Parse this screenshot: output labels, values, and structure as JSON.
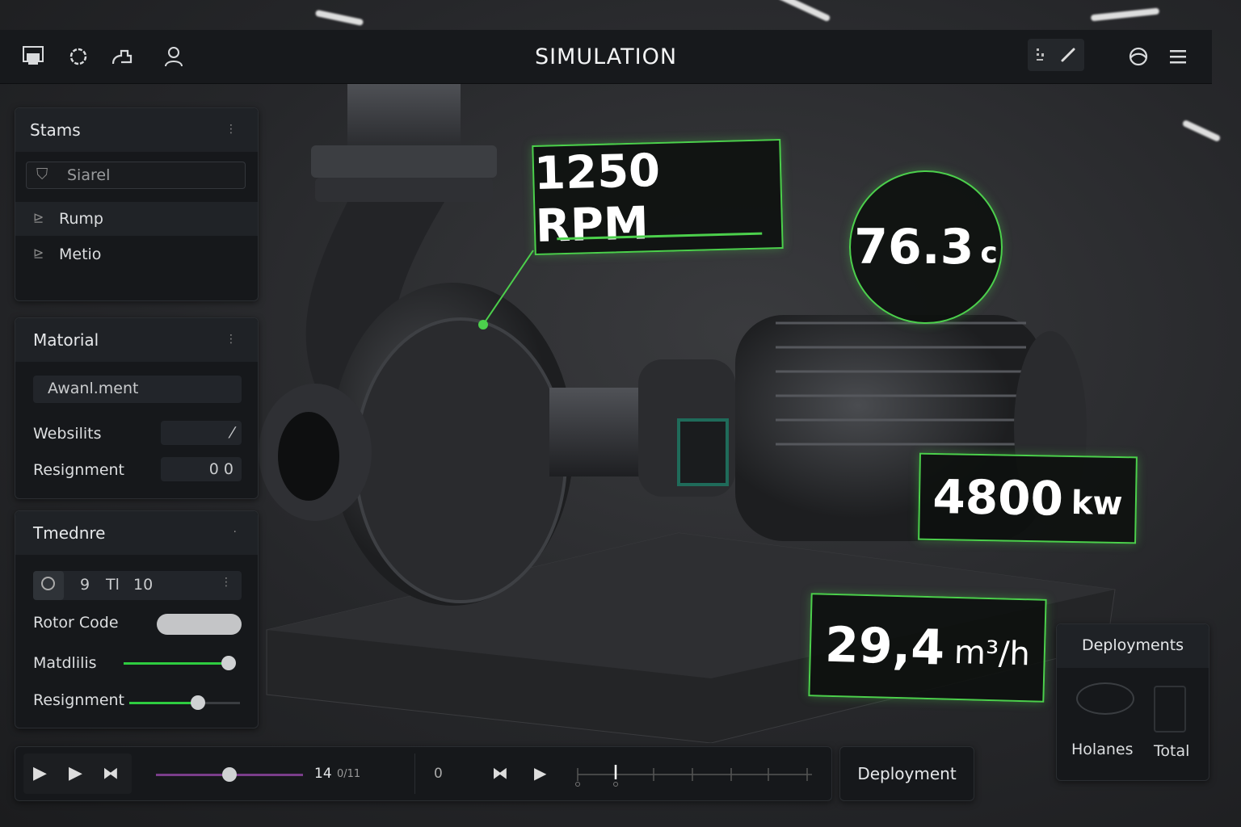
{
  "header": {
    "title": "SIMULATION",
    "icons": [
      "monitor-icon",
      "gear-icon",
      "pump-icon",
      "user-icon",
      "grid-icon",
      "pencil-icon",
      "globe-icon",
      "menu-icon"
    ]
  },
  "stams": {
    "title": "Stams",
    "search_placeholder": "Siarel",
    "items": [
      {
        "label": "Rump"
      },
      {
        "label": "Metio"
      }
    ]
  },
  "material": {
    "title": "Matorial",
    "field": "Awanl.ment",
    "rows": [
      {
        "label": "Websilits",
        "value": "⁄"
      },
      {
        "label": "Resignment",
        "value": "0 0"
      }
    ]
  },
  "timeline_panel": {
    "title": "Tmednre",
    "values": [
      "9",
      "Tl",
      "10"
    ],
    "rotor_label": "Rotor Code",
    "sliders": [
      {
        "label": "Matdlilis",
        "value": 0.95
      },
      {
        "label": "Resignment",
        "value": 0.62
      }
    ]
  },
  "readouts": {
    "rpm": "1250 RPM",
    "temp_value": "76.3",
    "temp_unit": "c",
    "power_value": "4800",
    "power_unit": "kw",
    "flow_value": "29,4",
    "flow_unit": "m³/h"
  },
  "playback": {
    "time": "14",
    "time_unit": "0/11",
    "counter": "0",
    "progress": 0.5
  },
  "deployment_button": "Deployment",
  "deployments": {
    "title": "Deployments",
    "items": [
      {
        "label": "Holanes"
      },
      {
        "label": "Total"
      }
    ]
  },
  "colors": {
    "accent": "#4cd04c",
    "panel": "#16181b",
    "scrub": "#7a3d8a"
  }
}
